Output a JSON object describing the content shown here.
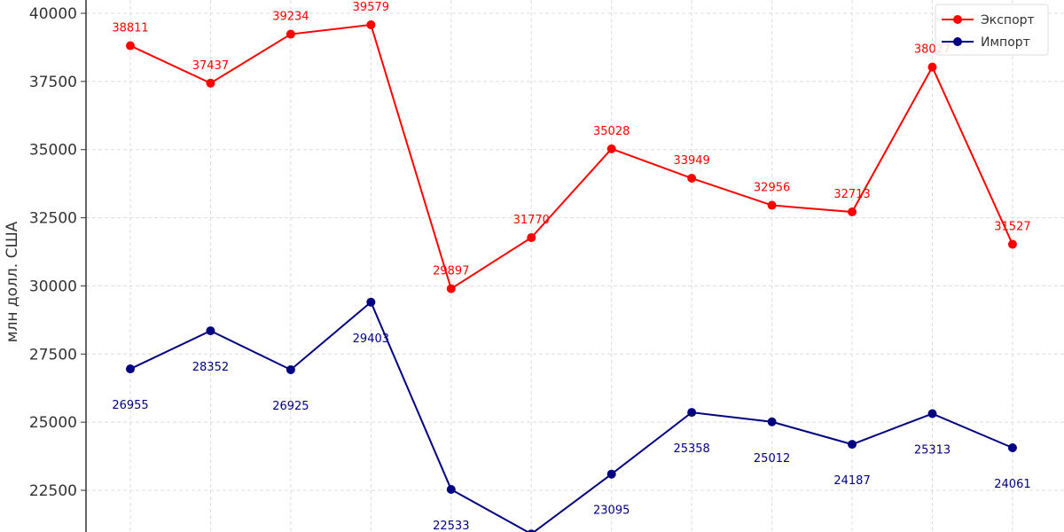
{
  "chart_data": {
    "type": "line",
    "title": "",
    "xlabel": "",
    "ylabel": "млн долл. США",
    "ylim": [
      20970,
      40500
    ],
    "yticks": [
      22500,
      25000,
      27500,
      30000,
      32500,
      35000,
      37500,
      40000
    ],
    "yticks_labels": [
      "22500",
      "25000",
      "27500",
      "30000",
      "32500",
      "35000",
      "37500",
      "40000"
    ],
    "grid": true,
    "legend_position": "top-right",
    "series": [
      {
        "name": "Экспорт",
        "color": "#ff0000",
        "values": [
          38811,
          37437,
          39234,
          39579,
          29897,
          31770,
          35028,
          33949,
          32956,
          32713,
          38027,
          31527
        ],
        "labels": [
          "38811",
          "37437",
          "39234",
          "39579",
          "29897",
          "31770",
          "35028",
          "33949",
          "32956",
          "32713",
          "38027",
          "31527"
        ]
      },
      {
        "name": "Импорт",
        "color": "#000080",
        "values": [
          26955,
          28352,
          26925,
          29403,
          22533,
          20900,
          23095,
          25358,
          25012,
          24187,
          25313,
          24061
        ],
        "labels": [
          "26955",
          "28352",
          "26925",
          "29403",
          "22533",
          "",
          "23095",
          "25358",
          "25012",
          "24187",
          "25313",
          "24061"
        ]
      }
    ]
  }
}
